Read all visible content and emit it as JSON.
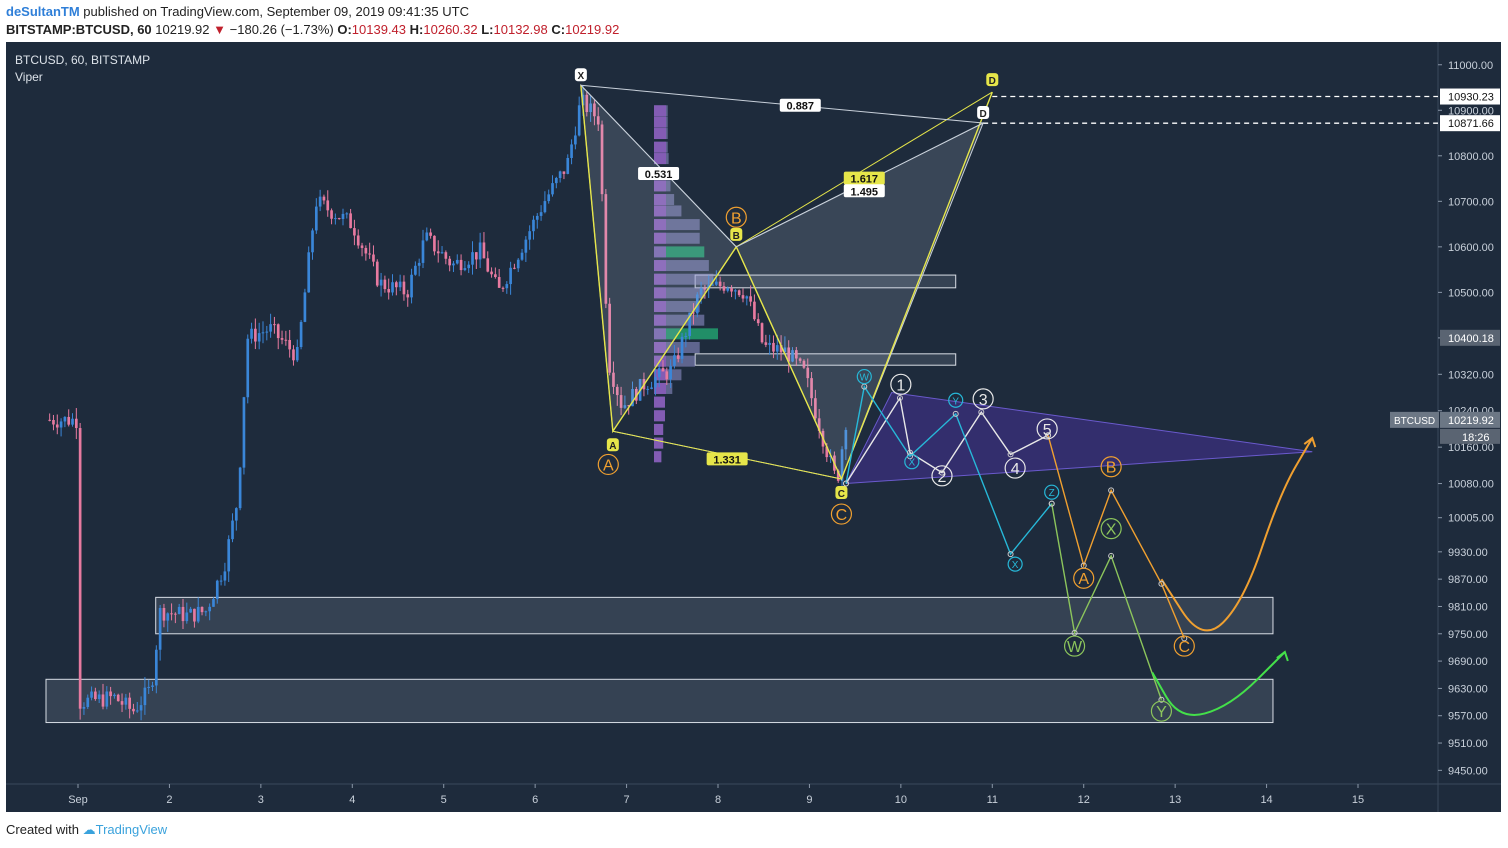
{
  "header": {
    "author": "deSultanTM",
    "published_text": "published on TradingView.com, September 09, 2019 09:41:35 UTC",
    "symbol": "BITSTAMP:BTCUSD, 60",
    "price": "10219.92",
    "change": "−180.26 (−1.73%)",
    "open_label": "O:",
    "open": "10139.43",
    "high_label": "H:",
    "high": "10260.32",
    "low_label": "L:",
    "low": "10132.98",
    "close_label": "C:",
    "close": "10219.92"
  },
  "legend": {
    "line1": "BTCUSD, 60, BITSTAMP",
    "line2": "Viper"
  },
  "footer": {
    "created": "Created with",
    "brand": "TradingView"
  },
  "colors": {
    "background": "#1e2b3c",
    "up": "#3a86d8",
    "down": "#e77aa0",
    "harmonic": "#e6e64a",
    "orange": "#f0a030",
    "cyan": "#27b8d8",
    "white": "#e8e8e8",
    "green": "#8cc55c",
    "bright_green": "#44e04a",
    "triangle": "#3d2f78"
  },
  "chart_data": {
    "type": "candlestick",
    "y_axis": {
      "min": 9420,
      "max": 11050,
      "ticks": [
        "11000.00",
        "10900.00",
        "10800.00",
        "10700.00",
        "10600.00",
        "10500.00",
        "10400.00",
        "10320.00",
        "10240.00",
        "10160.00",
        "10080.00",
        "10005.00",
        "9930.00",
        "9870.00",
        "9810.00",
        "9750.00",
        "9690.00",
        "9630.00",
        "9570.00",
        "9510.00",
        "9450.00"
      ],
      "price_labels": [
        {
          "text": "10930.23",
          "value": 10930.23
        },
        {
          "text": "10871.66",
          "value": 10871.66
        },
        {
          "text": "10400.18",
          "value": 10400.18
        },
        {
          "text": "10219.92",
          "value": 10219.92,
          "name": "BTCUSD",
          "countdown": "18:26"
        }
      ]
    },
    "x_axis": {
      "labels": [
        "Sep",
        "2",
        "3",
        "4",
        "5",
        "6",
        "7",
        "8",
        "9",
        "10",
        "11",
        "12",
        "13",
        "14",
        "15"
      ],
      "day_values": [
        1,
        2,
        3,
        4,
        5,
        6,
        7,
        8,
        9,
        10,
        11,
        12,
        13,
        14,
        15
      ]
    },
    "candles_anchor_points": [
      [
        1.0,
        9600
      ],
      [
        1.4,
        9610
      ],
      [
        1.6,
        9580
      ],
      [
        1.8,
        9630
      ],
      [
        1.9,
        9800
      ],
      [
        2.2,
        9790
      ],
      [
        2.4,
        9800
      ],
      [
        2.6,
        9900
      ],
      [
        2.75,
        10050
      ],
      [
        2.85,
        10400
      ],
      [
        3.1,
        10420
      ],
      [
        3.4,
        10360
      ],
      [
        3.6,
        10700
      ],
      [
        4.0,
        10650
      ],
      [
        4.3,
        10520
      ],
      [
        4.6,
        10500
      ],
      [
        4.8,
        10620
      ],
      [
        5.1,
        10560
      ],
      [
        5.4,
        10590
      ],
      [
        5.6,
        10500
      ],
      [
        5.8,
        10580
      ],
      [
        6.1,
        10700
      ],
      [
        6.35,
        10780
      ],
      [
        6.5,
        10920
      ],
      [
        6.7,
        10880
      ],
      [
        6.8,
        10350
      ],
      [
        6.95,
        10250
      ],
      [
        7.2,
        10300
      ],
      [
        7.5,
        10330
      ],
      [
        7.8,
        10500
      ],
      [
        8.1,
        10520
      ],
      [
        8.3,
        10500
      ],
      [
        8.5,
        10380
      ],
      [
        8.75,
        10370
      ],
      [
        8.95,
        10320
      ],
      [
        9.15,
        10180
      ],
      [
        9.3,
        10080
      ],
      [
        9.4,
        10220
      ]
    ],
    "zones": [
      {
        "from_day": 1.85,
        "to_day": 14.07,
        "top": 9830,
        "bottom": 9750
      },
      {
        "from_day": 0.65,
        "to_day": 14.07,
        "top": 9650,
        "bottom": 9555
      },
      {
        "from_day": 7.75,
        "to_day": 10.6,
        "top": 10538,
        "bottom": 10510
      },
      {
        "from_day": 7.75,
        "to_day": 10.6,
        "top": 10365,
        "bottom": 10340
      }
    ],
    "horizontal_lines": [
      {
        "value": 10930.23,
        "from_day": 11.0
      },
      {
        "value": 10871.66,
        "from_day": 10.9
      }
    ],
    "harmonic": {
      "points": {
        "X": {
          "day": 6.5,
          "price": 10955
        },
        "A": {
          "day": 6.85,
          "price": 10195
        },
        "B": {
          "day": 8.2,
          "price": 10600
        },
        "C": {
          "day": 9.35,
          "price": 10090
        },
        "D_yellow": {
          "day": 11.0,
          "price": 10940
        },
        "D_white": {
          "day": 10.9,
          "price": 10872
        }
      },
      "labels": [
        "X",
        "A",
        "B",
        "C",
        "D",
        "D"
      ],
      "ratios": [
        {
          "text": "0.887",
          "day": 8.9,
          "price": 10910,
          "style": "white"
        },
        {
          "text": "0.531",
          "day": 7.35,
          "price": 10760,
          "style": "white"
        },
        {
          "text": "1.617",
          "day": 9.6,
          "price": 10750,
          "style": "yellow"
        },
        {
          "text": "1.495",
          "day": 9.6,
          "price": 10722,
          "style": "white"
        },
        {
          "text": "1.331",
          "day": 8.1,
          "price": 10133,
          "style": "yellow"
        }
      ]
    },
    "wave_labels": [
      {
        "text": "B",
        "day": 8.2,
        "price": 10665,
        "color": "orange",
        "size": "large"
      },
      {
        "text": "A",
        "day": 6.8,
        "price": 10122,
        "color": "orange",
        "size": "large"
      },
      {
        "text": "C",
        "day": 9.35,
        "price": 10013,
        "color": "orange",
        "size": "large"
      },
      {
        "text": "1",
        "day": 10.0,
        "price": 10298,
        "color": "white",
        "size": "large"
      },
      {
        "text": "2",
        "day": 10.45,
        "price": 10097,
        "color": "white",
        "size": "large"
      },
      {
        "text": "3",
        "day": 10.9,
        "price": 10266,
        "color": "white",
        "size": "large"
      },
      {
        "text": "4",
        "day": 11.25,
        "price": 10114,
        "color": "white",
        "size": "large"
      },
      {
        "text": "5",
        "day": 11.6,
        "price": 10200,
        "color": "white",
        "size": "large"
      },
      {
        "text": "W",
        "day": 9.6,
        "price": 10315,
        "color": "cyan",
        "size": "small"
      },
      {
        "text": "X",
        "day": 10.12,
        "price": 10128,
        "color": "cyan",
        "size": "small"
      },
      {
        "text": "Y",
        "day": 10.6,
        "price": 10263,
        "color": "cyan",
        "size": "small"
      },
      {
        "text": "Z",
        "day": 11.65,
        "price": 10061,
        "color": "cyan",
        "size": "small"
      },
      {
        "text": "X",
        "day": 11.25,
        "price": 9903,
        "color": "cyan",
        "size": "small"
      },
      {
        "text": "B",
        "day": 12.3,
        "price": 10117,
        "color": "orange",
        "size": "large"
      },
      {
        "text": "A",
        "day": 12.0,
        "price": 9872,
        "color": "orange",
        "size": "large"
      },
      {
        "text": "C",
        "day": 13.1,
        "price": 9723,
        "color": "orange",
        "size": "large"
      },
      {
        "text": "X",
        "day": 12.3,
        "price": 9981,
        "color": "green",
        "size": "large"
      },
      {
        "text": "W",
        "day": 11.9,
        "price": 9723,
        "color": "green",
        "size": "large"
      },
      {
        "text": "Y",
        "day": 12.85,
        "price": 9580,
        "color": "green",
        "size": "large"
      }
    ],
    "paths": {
      "white_zigzag": [
        [
          9.4,
          10080
        ],
        [
          9.99,
          10268
        ],
        [
          10.1,
          10148
        ],
        [
          10.45,
          10104
        ],
        [
          10.88,
          10237
        ],
        [
          11.2,
          10144
        ],
        [
          11.61,
          10186
        ]
      ],
      "cyan_zigzag": [
        [
          9.4,
          10080
        ],
        [
          9.6,
          10293
        ],
        [
          10.1,
          10140
        ],
        [
          10.6,
          10233
        ],
        [
          11.2,
          9925
        ],
        [
          11.65,
          10036
        ]
      ],
      "orange_path": [
        [
          11.61,
          10186
        ],
        [
          12.0,
          9900
        ],
        [
          12.3,
          10065
        ],
        [
          12.85,
          9860
        ],
        [
          13.1,
          9740
        ]
      ],
      "green_path": [
        [
          11.65,
          10036
        ],
        [
          11.9,
          9752
        ],
        [
          12.3,
          9921
        ],
        [
          12.85,
          9605
        ]
      ],
      "orange_arc": [
        [
          12.85,
          9870
        ],
        [
          13.3,
          9730
        ],
        [
          13.75,
          9820
        ],
        [
          14.15,
          10060
        ],
        [
          14.5,
          10180
        ]
      ],
      "green_arc": [
        [
          12.75,
          9665
        ],
        [
          13.05,
          9560
        ],
        [
          13.6,
          9590
        ],
        [
          14.2,
          9710
        ]
      ],
      "triangle": [
        [
          9.4,
          10080
        ],
        [
          9.9,
          10280
        ],
        [
          14.5,
          10150
        ],
        [
          9.4,
          10080
        ]
      ]
    },
    "volume_profile": {
      "base_day": 7.3,
      "rows": [
        {
          "price": 10900,
          "len": 0.15,
          "color": "purple"
        },
        {
          "price": 10875,
          "len": 0.15,
          "color": "purple"
        },
        {
          "price": 10850,
          "len": 0.15,
          "color": "purple"
        },
        {
          "price": 10820,
          "len": 0.15,
          "color": "purple"
        },
        {
          "price": 10795,
          "len": 0.16,
          "color": "purple"
        },
        {
          "price": 10760,
          "len": 0.16,
          "color": "purple"
        },
        {
          "price": 10735,
          "len": 0.18,
          "color": "purple"
        },
        {
          "price": 10705,
          "len": 0.22,
          "color": "purple"
        },
        {
          "price": 10680,
          "len": 0.3,
          "color": "purple"
        },
        {
          "price": 10650,
          "len": 0.5,
          "color": "purple"
        },
        {
          "price": 10620,
          "len": 0.5,
          "color": "purple"
        },
        {
          "price": 10590,
          "len": 0.55,
          "color": "green"
        },
        {
          "price": 10560,
          "len": 0.6,
          "color": "purple"
        },
        {
          "price": 10530,
          "len": 0.65,
          "color": "purple"
        },
        {
          "price": 10500,
          "len": 0.55,
          "color": "purple"
        },
        {
          "price": 10470,
          "len": 0.5,
          "color": "purple"
        },
        {
          "price": 10440,
          "len": 0.55,
          "color": "purple"
        },
        {
          "price": 10410,
          "len": 0.7,
          "color": "green"
        },
        {
          "price": 10380,
          "len": 0.5,
          "color": "purple"
        },
        {
          "price": 10350,
          "len": 0.45,
          "color": "purple"
        },
        {
          "price": 10320,
          "len": 0.3,
          "color": "purple"
        },
        {
          "price": 10290,
          "len": 0.2,
          "color": "purple"
        },
        {
          "price": 10260,
          "len": 0.12,
          "color": "purple"
        },
        {
          "price": 10230,
          "len": 0.12,
          "color": "purple"
        },
        {
          "price": 10200,
          "len": 0.1,
          "color": "purple"
        },
        {
          "price": 10170,
          "len": 0.1,
          "color": "purple"
        },
        {
          "price": 10140,
          "len": 0.08,
          "color": "purple"
        }
      ]
    }
  }
}
